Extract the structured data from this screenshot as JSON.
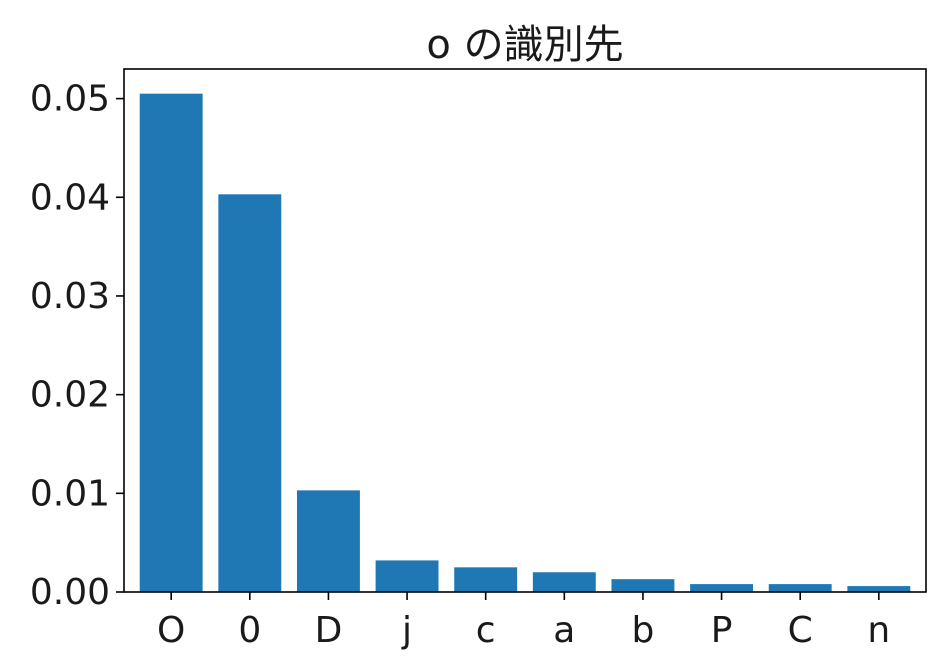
{
  "chart_data": {
    "type": "bar",
    "title": "o の識別先",
    "xlabel": "",
    "ylabel": "",
    "categories": [
      "O",
      "0",
      "D",
      "j",
      "c",
      "a",
      "b",
      "P",
      "C",
      "n"
    ],
    "values": [
      0.0505,
      0.0403,
      0.0103,
      0.0032,
      0.0025,
      0.002,
      0.0013,
      0.0008,
      0.0008,
      0.0006
    ],
    "ylim": [
      0,
      0.053
    ],
    "yticks": [
      "0.00",
      "0.01",
      "0.02",
      "0.03",
      "0.04",
      "0.05"
    ],
    "ytick_values": [
      0.0,
      0.01,
      0.02,
      0.03,
      0.04,
      0.05
    ],
    "bar_color": "#1f77b4",
    "grid": false,
    "legend": "none"
  }
}
